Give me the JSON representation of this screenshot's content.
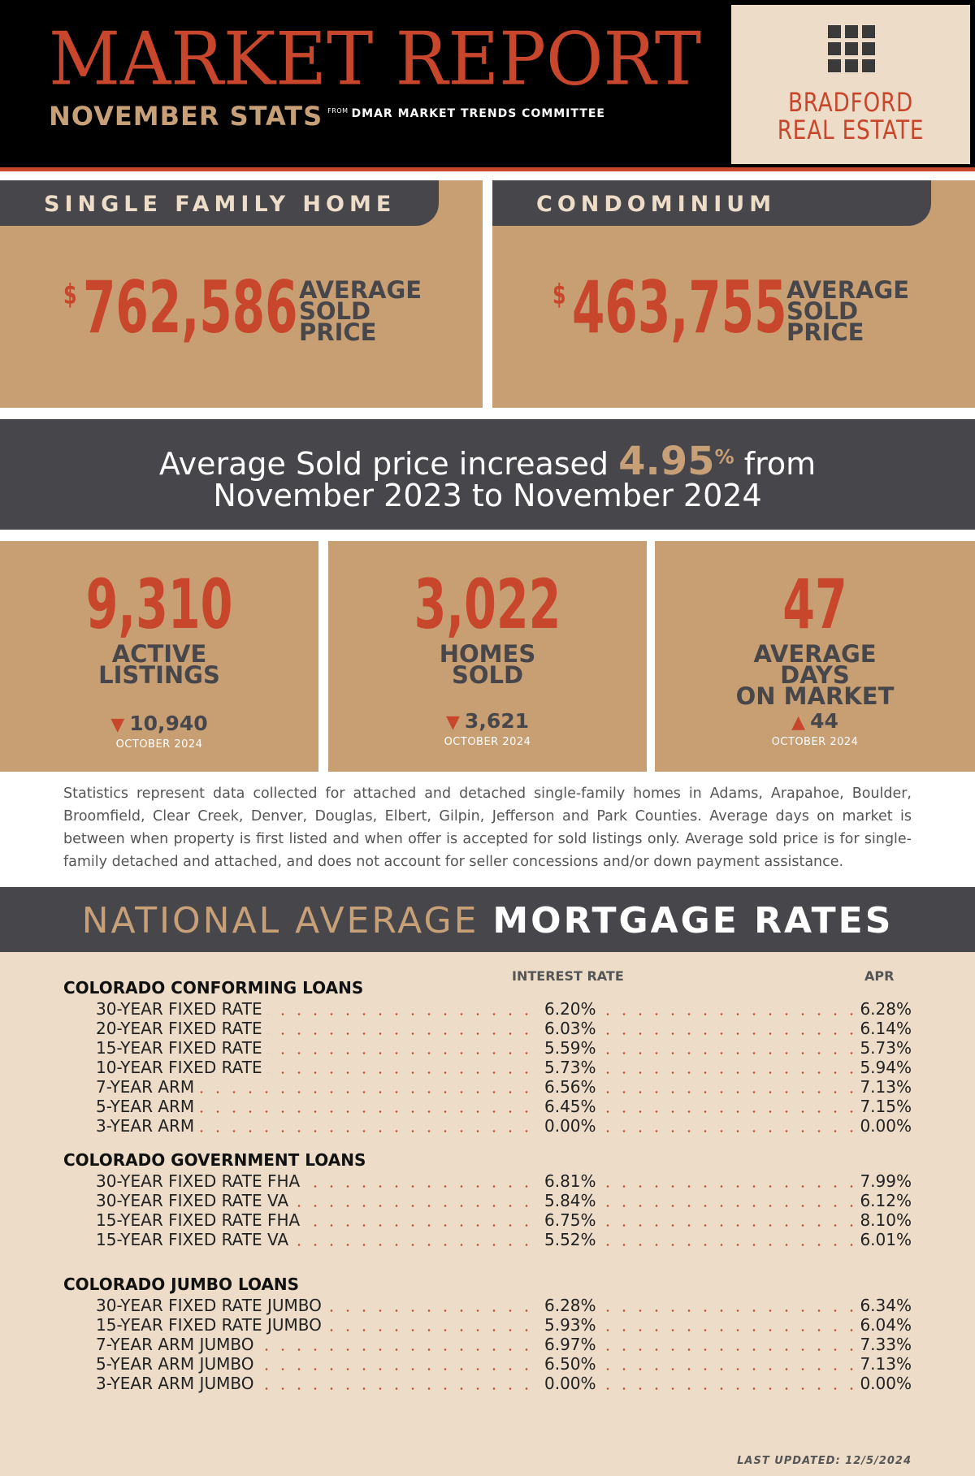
{
  "header": {
    "title": "MARKET REPORT",
    "subtitle": "NOVEMBER STATS",
    "from": "FROM",
    "source": "DMAR MARKET TRENDS COMMITTEE",
    "logo_line1": "BRADFORD",
    "logo_line2": "REAL ESTATE",
    "logo_icon": "window-grid-icon"
  },
  "panels": [
    {
      "title": "SINGLE FAMILY HOME",
      "currency": "$",
      "price": "762,586",
      "label": "AVERAGE SOLD PRICE"
    },
    {
      "title": "CONDOMINIUM",
      "currency": "$",
      "price": "463,755",
      "label": "AVERAGE SOLD PRICE"
    }
  ],
  "banner": {
    "prefix": "Average Sold price increased",
    "percent": "4.95",
    "percent_sign": "%",
    "suffix": "from",
    "line2": "November 2023 to November 2024"
  },
  "stats": [
    {
      "value": "9,310",
      "label": "ACTIVE LISTINGS",
      "arrow": "down",
      "arrow_glyph": "▼",
      "previous": "10,940",
      "period": "OCTOBER 2024"
    },
    {
      "value": "3,022",
      "label": "HOMES SOLD",
      "arrow": "down",
      "arrow_glyph": "▼",
      "previous": "3,621",
      "period": "OCTOBER 2024"
    },
    {
      "value": "47",
      "label": "AVERAGE DAYS ON MARKET",
      "arrow": "up",
      "arrow_glyph": "▲",
      "previous": "44",
      "period": "OCTOBER 2024"
    }
  ],
  "footnote": "Statistics represent data collected for attached and detached single-family homes in Adams, Arapahoe, Boulder, Broomfield, Clear Creek, Denver, Douglas, Elbert, Gilpin, Jefferson and Park Counties. Average days on market is between when property is first listed and when offer is accepted for sold listings only. Average sold price is for single-family detached and attached, and does not account for seller concessions and/or down payment assistance.",
  "mortgage": {
    "title_light": "NATIONAL AVERAGE",
    "title_bold": "MORTGAGE RATES",
    "col_rate": "INTEREST RATE",
    "col_apr": "APR",
    "groups": [
      {
        "title": "COLORADO CONFORMING LOANS",
        "rows": [
          {
            "label": "30-YEAR FIXED RATE",
            "rate": "6.20%",
            "apr": "6.28%"
          },
          {
            "label": "20-YEAR FIXED RATE",
            "rate": "6.03%",
            "apr": "6.14%"
          },
          {
            "label": "15-YEAR FIXED RATE",
            "rate": "5.59%",
            "apr": "5.73%"
          },
          {
            "label": "10-YEAR FIXED RATE",
            "rate": "5.73%",
            "apr": "5.94%"
          },
          {
            "label": "7-YEAR ARM",
            "rate": "6.56%",
            "apr": "7.13%"
          },
          {
            "label": "5-YEAR ARM",
            "rate": "6.45%",
            "apr": "7.15%"
          },
          {
            "label": "3-YEAR ARM",
            "rate": "0.00%",
            "apr": "0.00%"
          }
        ]
      },
      {
        "title": "COLORADO GOVERNMENT LOANS",
        "rows": [
          {
            "label": "30-YEAR FIXED RATE FHA",
            "rate": "6.81%",
            "apr": "7.99%"
          },
          {
            "label": "30-YEAR FIXED RATE VA",
            "rate": "5.84%",
            "apr": "6.12%"
          },
          {
            "label": "15-YEAR FIXED RATE FHA",
            "rate": "6.75%",
            "apr": "8.10%"
          },
          {
            "label": "15-YEAR FIXED RATE VA",
            "rate": "5.52%",
            "apr": "6.01%"
          }
        ]
      },
      {
        "title": "COLORADO JUMBO LOANS",
        "rows": [
          {
            "label": "30-YEAR FIXED RATE JUMBO",
            "rate": "6.28%",
            "apr": "6.34%"
          },
          {
            "label": "15-YEAR FIXED RATE JUMBO",
            "rate": "5.93%",
            "apr": "6.04%"
          },
          {
            "label": "7-YEAR ARM JUMBO",
            "rate": "6.97%",
            "apr": "7.33%"
          },
          {
            "label": "5-YEAR ARM JUMBO",
            "rate": "6.50%",
            "apr": "7.13%"
          },
          {
            "label": "3-YEAR ARM JUMBO",
            "rate": "0.00%",
            "apr": "0.00%"
          }
        ]
      }
    ],
    "updated": "LAST UPDATED: 12/5/2024"
  },
  "colors": {
    "accent_red": "#c8462b",
    "tan": "#c89f73",
    "dark_gray": "#47474b",
    "cream": "#ecdcc8"
  }
}
